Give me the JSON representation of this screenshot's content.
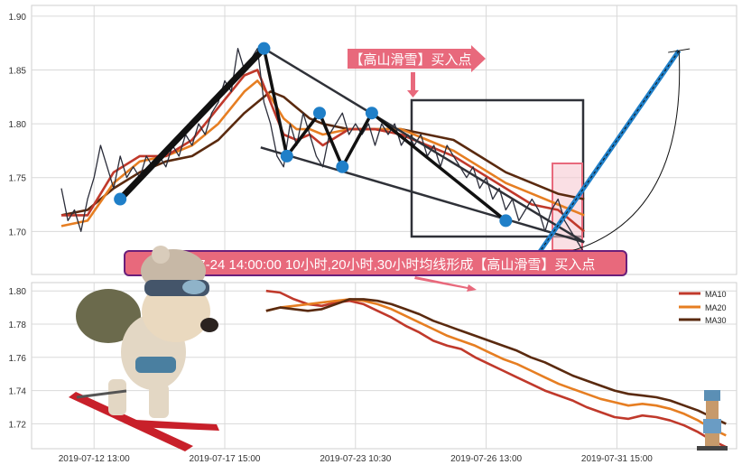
{
  "colors": {
    "price": "#2b2d3a",
    "ma10": "#c0392b",
    "ma20": "#e67e22",
    "ma30": "#5a2a0f",
    "pivot": "#1f7fc8",
    "annotation": "#e8697c",
    "pattern": "#2f3138",
    "grid": "#d9d9d9"
  },
  "annotations": {
    "top_label": "【高山滑雪】买入点",
    "banner_label": "2019-07-24 14:00:00 10小时,20小时,30小时均线形成【高山滑雪】买入点"
  },
  "illustrations": {
    "skiing_dog": "skiing-dog-illustration",
    "pixel_skier": "pixel-skier-sprite"
  },
  "chart_data": [
    {
      "type": "line",
      "panel": "price",
      "ylim": [
        1.66,
        1.91
      ],
      "yticks": [
        "1.70",
        "1.75",
        "1.80",
        "1.85",
        "1.90"
      ],
      "ytick_values": [
        1.7,
        1.75,
        1.8,
        1.85,
        1.9
      ],
      "xlim": [
        0,
        100
      ],
      "grid": true,
      "series": [
        {
          "role": "price",
          "x": [
            0,
            1,
            2,
            3,
            4,
            5,
            6,
            7,
            8,
            9,
            10,
            11,
            12,
            13,
            14,
            15,
            16,
            17,
            18,
            19,
            20,
            21,
            22,
            23,
            24,
            25,
            26,
            27,
            28,
            29,
            30,
            31,
            32,
            33,
            34,
            35,
            36,
            37,
            38,
            39,
            40,
            41,
            42,
            43,
            44,
            45,
            46,
            47,
            48,
            49,
            50,
            51,
            52,
            53,
            54,
            55,
            56,
            57,
            58,
            59,
            60,
            61,
            62,
            63,
            64,
            65,
            66,
            67,
            68,
            69,
            70,
            71,
            72,
            73,
            74,
            75,
            76,
            77,
            78,
            79,
            80
          ],
          "values": [
            1.74,
            1.71,
            1.72,
            1.7,
            1.73,
            1.75,
            1.78,
            1.76,
            1.74,
            1.77,
            1.75,
            1.76,
            1.75,
            1.77,
            1.76,
            1.77,
            1.76,
            1.78,
            1.77,
            1.79,
            1.78,
            1.8,
            1.79,
            1.81,
            1.82,
            1.84,
            1.83,
            1.87,
            1.85,
            1.86,
            1.87,
            1.82,
            1.8,
            1.77,
            1.76,
            1.8,
            1.78,
            1.81,
            1.79,
            1.77,
            1.76,
            1.79,
            1.8,
            1.81,
            1.79,
            1.8,
            1.79,
            1.8,
            1.78,
            1.8,
            1.79,
            1.8,
            1.78,
            1.79,
            1.78,
            1.79,
            1.77,
            1.78,
            1.76,
            1.78,
            1.77,
            1.76,
            1.75,
            1.76,
            1.74,
            1.75,
            1.73,
            1.74,
            1.72,
            1.73,
            1.71,
            1.72,
            1.73,
            1.72,
            1.7,
            1.72,
            1.73,
            1.71,
            1.7,
            1.69,
            1.68
          ]
        },
        {
          "role": "ma10",
          "x": [
            0,
            4,
            8,
            12,
            16,
            20,
            24,
            28,
            30,
            32,
            34,
            36,
            38,
            40,
            44,
            48,
            52,
            56,
            60,
            64,
            68,
            72,
            76,
            80
          ],
          "values": [
            1.715,
            1.715,
            1.755,
            1.77,
            1.77,
            1.785,
            1.815,
            1.845,
            1.85,
            1.82,
            1.79,
            1.785,
            1.79,
            1.78,
            1.795,
            1.795,
            1.79,
            1.78,
            1.77,
            1.755,
            1.74,
            1.725,
            1.72,
            1.7
          ]
        },
        {
          "role": "ma20",
          "x": [
            0,
            4,
            8,
            12,
            16,
            20,
            24,
            28,
            30,
            32,
            34,
            36,
            38,
            40,
            44,
            48,
            52,
            56,
            60,
            64,
            68,
            72,
            76,
            80
          ],
          "values": [
            1.705,
            1.71,
            1.745,
            1.765,
            1.77,
            1.78,
            1.8,
            1.83,
            1.84,
            1.825,
            1.805,
            1.795,
            1.795,
            1.79,
            1.795,
            1.795,
            1.795,
            1.785,
            1.775,
            1.76,
            1.745,
            1.735,
            1.725,
            1.715
          ]
        },
        {
          "role": "ma30",
          "x": [
            0,
            4,
            8,
            12,
            16,
            20,
            24,
            28,
            30,
            32,
            34,
            36,
            38,
            40,
            44,
            48,
            52,
            56,
            60,
            64,
            68,
            72,
            76,
            80
          ],
          "values": [
            1.715,
            1.72,
            1.74,
            1.755,
            1.765,
            1.77,
            1.785,
            1.81,
            1.82,
            1.83,
            1.825,
            1.815,
            1.805,
            1.8,
            1.795,
            1.795,
            1.795,
            1.79,
            1.785,
            1.77,
            1.755,
            1.745,
            1.735,
            1.73
          ]
        }
      ],
      "pivots": [
        {
          "x": 9,
          "y": 1.73
        },
        {
          "x": 31,
          "y": 1.87
        },
        {
          "x": 34.5,
          "y": 1.77
        },
        {
          "x": 39.5,
          "y": 1.81
        },
        {
          "x": 43,
          "y": 1.76
        },
        {
          "x": 47.5,
          "y": 1.81
        },
        {
          "x": 68,
          "y": 1.71
        }
      ],
      "zigzag": [
        [
          9,
          1.73
        ],
        [
          31,
          1.87
        ],
        [
          34.5,
          1.77
        ],
        [
          39.5,
          1.81
        ],
        [
          43,
          1.76
        ],
        [
          47.5,
          1.81
        ],
        [
          68,
          1.71
        ]
      ],
      "trendlines": [
        {
          "from": [
            31,
            1.87
          ],
          "to": [
            80,
            1.69
          ]
        },
        {
          "from": [
            30.5,
            1.778
          ],
          "to": [
            80,
            1.69
          ]
        }
      ],
      "projection": {
        "from": [
          72.5,
          1.675
        ],
        "to": [
          94.5,
          1.868
        ]
      }
    },
    {
      "type": "line",
      "panel": "moving-averages",
      "ylim": [
        1.705,
        1.805
      ],
      "yticks": [
        "1.72",
        "1.74",
        "1.76",
        "1.78",
        "1.80"
      ],
      "ytick_values": [
        1.72,
        1.74,
        1.76,
        1.78,
        1.8
      ],
      "xlim": [
        0,
        100
      ],
      "grid": true,
      "legend_position": "top-right",
      "categories": [
        "2019-07-12 13:00",
        "2019-07-17 15:00",
        "2019-07-23 10:30",
        "2019-07-26 13:00",
        "2019-07-31 15:00"
      ],
      "category_x": [
        5,
        25,
        45,
        65,
        85
      ],
      "series": [
        {
          "name": "MA10",
          "x": [
            33,
            35,
            37,
            39,
            41,
            43,
            45,
            47,
            49,
            51,
            53,
            55,
            57,
            59,
            61,
            63,
            65,
            67,
            69,
            71,
            73,
            75,
            77,
            79,
            81,
            83,
            85,
            87,
            89,
            91,
            93,
            95,
            97,
            99
          ],
          "values": [
            1.8,
            1.799,
            1.795,
            1.792,
            1.791,
            1.793,
            1.794,
            1.792,
            1.788,
            1.784,
            1.779,
            1.775,
            1.77,
            1.767,
            1.765,
            1.76,
            1.756,
            1.752,
            1.748,
            1.744,
            1.74,
            1.737,
            1.734,
            1.73,
            1.727,
            1.724,
            1.723,
            1.725,
            1.724,
            1.722,
            1.719,
            1.715,
            1.71,
            1.706
          ]
        },
        {
          "name": "MA20",
          "x": [
            33,
            35,
            37,
            39,
            41,
            43,
            45,
            47,
            49,
            51,
            53,
            55,
            57,
            59,
            61,
            63,
            65,
            67,
            69,
            71,
            73,
            75,
            77,
            79,
            81,
            83,
            85,
            87,
            89,
            91,
            93,
            95,
            97,
            99
          ],
          "values": [
            1.788,
            1.79,
            1.791,
            1.792,
            1.793,
            1.794,
            1.795,
            1.794,
            1.792,
            1.789,
            1.785,
            1.781,
            1.777,
            1.773,
            1.77,
            1.767,
            1.763,
            1.759,
            1.756,
            1.752,
            1.748,
            1.744,
            1.741,
            1.738,
            1.735,
            1.733,
            1.731,
            1.732,
            1.731,
            1.729,
            1.726,
            1.722,
            1.717,
            1.713
          ]
        },
        {
          "name": "MA30",
          "x": [
            33,
            35,
            37,
            39,
            41,
            43,
            45,
            47,
            49,
            51,
            53,
            55,
            57,
            59,
            61,
            63,
            65,
            67,
            69,
            71,
            73,
            75,
            77,
            79,
            81,
            83,
            85,
            87,
            89,
            91,
            93,
            95,
            97,
            99
          ],
          "values": [
            1.788,
            1.79,
            1.789,
            1.788,
            1.789,
            1.792,
            1.795,
            1.795,
            1.794,
            1.792,
            1.789,
            1.786,
            1.782,
            1.779,
            1.776,
            1.773,
            1.77,
            1.767,
            1.764,
            1.76,
            1.757,
            1.753,
            1.749,
            1.746,
            1.743,
            1.74,
            1.738,
            1.737,
            1.736,
            1.734,
            1.731,
            1.728,
            1.724,
            1.72
          ]
        }
      ]
    }
  ]
}
